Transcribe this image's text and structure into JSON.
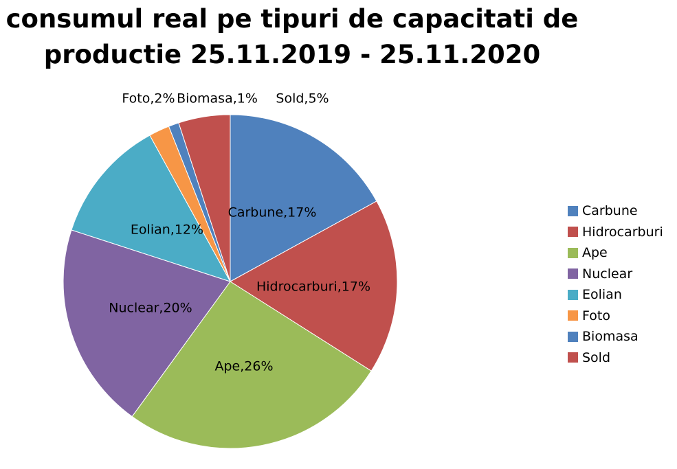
{
  "chart_data": {
    "type": "pie",
    "title_lines": [
      "consumul real pe tipuri de capacitati de",
      "productie 25.11.2019 - 25.11.2020"
    ],
    "slices": [
      {
        "name": "Carbune",
        "value": 17,
        "label": "Carbune,17%",
        "color": "#4F81BD"
      },
      {
        "name": "Hidrocarburi",
        "value": 17,
        "label": "Hidrocarburi,17%",
        "color": "#C0504D"
      },
      {
        "name": "Ape",
        "value": 26,
        "label": "Ape,26%",
        "color": "#9BBB59"
      },
      {
        "name": "Nuclear",
        "value": 20,
        "label": "Nuclear,20%",
        "color": "#8064A2"
      },
      {
        "name": "Eolian",
        "value": 12,
        "label": "Eolian,12%",
        "color": "#4BACC6"
      },
      {
        "name": "Foto",
        "value": 2,
        "label": "Foto,2%",
        "color": "#F79646"
      },
      {
        "name": "Biomasa",
        "value": 1,
        "label": "Biomasa,1%",
        "color": "#4F81BD"
      },
      {
        "name": "Sold",
        "value": 5,
        "label": "Sold,5%",
        "color": "#C0504D"
      }
    ],
    "legend_position": "right"
  }
}
